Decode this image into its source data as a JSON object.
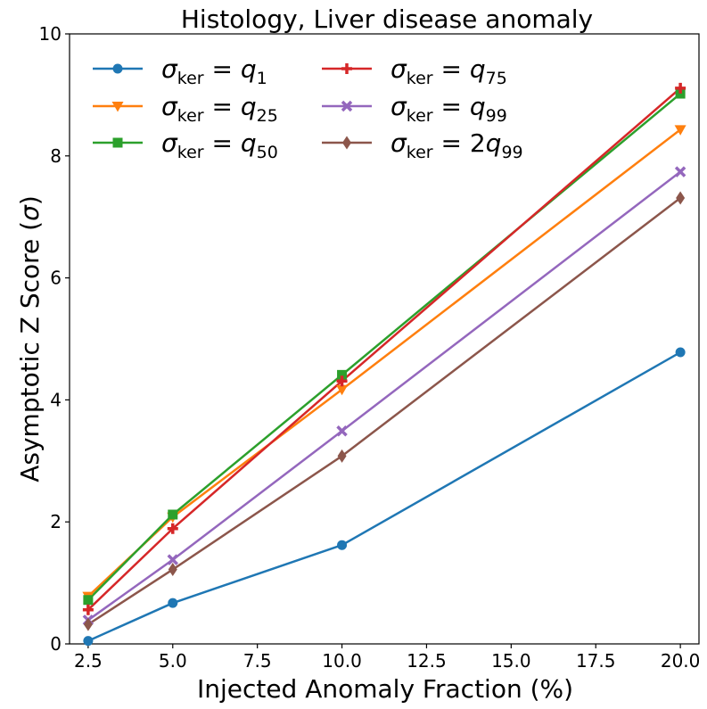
{
  "chart_data": {
    "type": "line",
    "title": "Histology, Liver disease anomaly",
    "xlabel": "Injected Anomaly Fraction (%)",
    "ylabel_text": "Asymptotic Z Score (",
    "ylabel_symbol": "σ",
    "ylabel_close": ")",
    "xlim": [
      1.95,
      20.55
    ],
    "ylim": [
      0,
      10
    ],
    "x_ticks": [
      "2.5",
      "5.0",
      "7.5",
      "10.0",
      "12.5",
      "15.0",
      "17.5",
      "20.0"
    ],
    "y_ticks": [
      "0",
      "2",
      "4",
      "6",
      "8",
      "10"
    ],
    "x": [
      2.5,
      5.0,
      10.0,
      20.0
    ],
    "grid": false,
    "legend_position": "top-left",
    "series": [
      {
        "legend_sigma": "σ",
        "legend_ker": "ker",
        "legend_eq": " = ",
        "legend_coef": "",
        "legend_q": "q",
        "legend_sub": "1",
        "values": [
          0.05,
          0.67,
          1.62,
          4.78
        ],
        "color": "#1f77b4",
        "marker": "circle"
      },
      {
        "legend_sigma": "σ",
        "legend_ker": "ker",
        "legend_eq": " = ",
        "legend_coef": "",
        "legend_q": "q",
        "legend_sub": "25",
        "values": [
          0.78,
          2.08,
          4.17,
          8.43
        ],
        "color": "#ff7f0e",
        "marker": "triangle-down"
      },
      {
        "legend_sigma": "σ",
        "legend_ker": "ker",
        "legend_eq": " = ",
        "legend_coef": "",
        "legend_q": "q",
        "legend_sub": "50",
        "values": [
          0.72,
          2.12,
          4.41,
          9.02
        ],
        "color": "#2ca02c",
        "marker": "square"
      },
      {
        "legend_sigma": "σ",
        "legend_ker": "ker",
        "legend_eq": " = ",
        "legend_coef": "",
        "legend_q": "q",
        "legend_sub": "75",
        "values": [
          0.56,
          1.89,
          4.31,
          9.11
        ],
        "color": "#d62728",
        "marker": "plus"
      },
      {
        "legend_sigma": "σ",
        "legend_ker": "ker",
        "legend_eq": " = ",
        "legend_coef": "",
        "legend_q": "q",
        "legend_sub": "99",
        "values": [
          0.39,
          1.38,
          3.49,
          7.74
        ],
        "color": "#9467bd",
        "marker": "x"
      },
      {
        "legend_sigma": "σ",
        "legend_ker": "ker",
        "legend_eq": " = ",
        "legend_coef": "2",
        "legend_q": "q",
        "legend_sub": "99",
        "values": [
          0.32,
          1.22,
          3.08,
          7.31
        ],
        "color": "#8c564b",
        "marker": "diamond"
      }
    ]
  }
}
